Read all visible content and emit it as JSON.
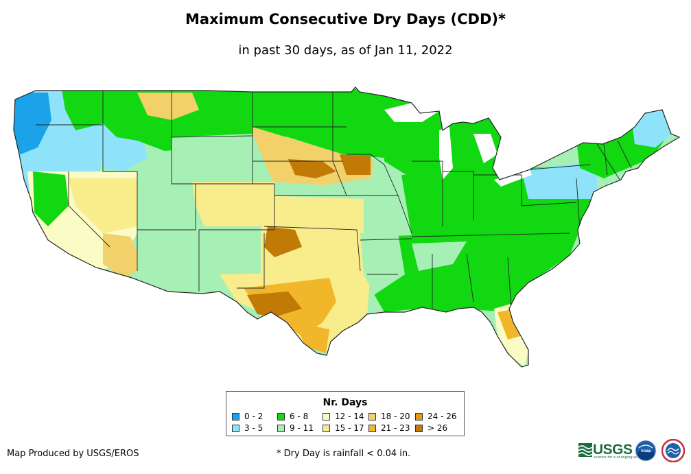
{
  "title": "Maximum Consecutive Dry Days (CDD)*",
  "subtitle": "in past 30 days, as of Jan 11, 2022",
  "legend": {
    "title": "Nr. Days",
    "items": [
      {
        "label": "0 - 2",
        "color": "#1aa3e8"
      },
      {
        "label": "3 - 5",
        "color": "#8ee3fa"
      },
      {
        "label": "6 - 8",
        "color": "#11d811"
      },
      {
        "label": "9 - 11",
        "color": "#a6f0b6"
      },
      {
        "label": "12 - 14",
        "color": "#fbfbc6"
      },
      {
        "label": "15 - 17",
        "color": "#f8ec8c"
      },
      {
        "label": "18 - 20",
        "color": "#f2d06a"
      },
      {
        "label": "21 - 23",
        "color": "#f2b62a"
      },
      {
        "label": "24 - 26",
        "color": "#e49a0c"
      },
      {
        "label": "> 26",
        "color": "#c27a06"
      }
    ]
  },
  "credit": "Map Produced by USGS/EROS",
  "footnote": "* Dry Day is rainfall < 0.04 in.",
  "logos": {
    "usgs": "USGS",
    "usgs_tagline": "science for a changing world",
    "noaa": "noaa"
  },
  "colors": {
    "state_border": "#222222",
    "background": "#ffffff"
  }
}
